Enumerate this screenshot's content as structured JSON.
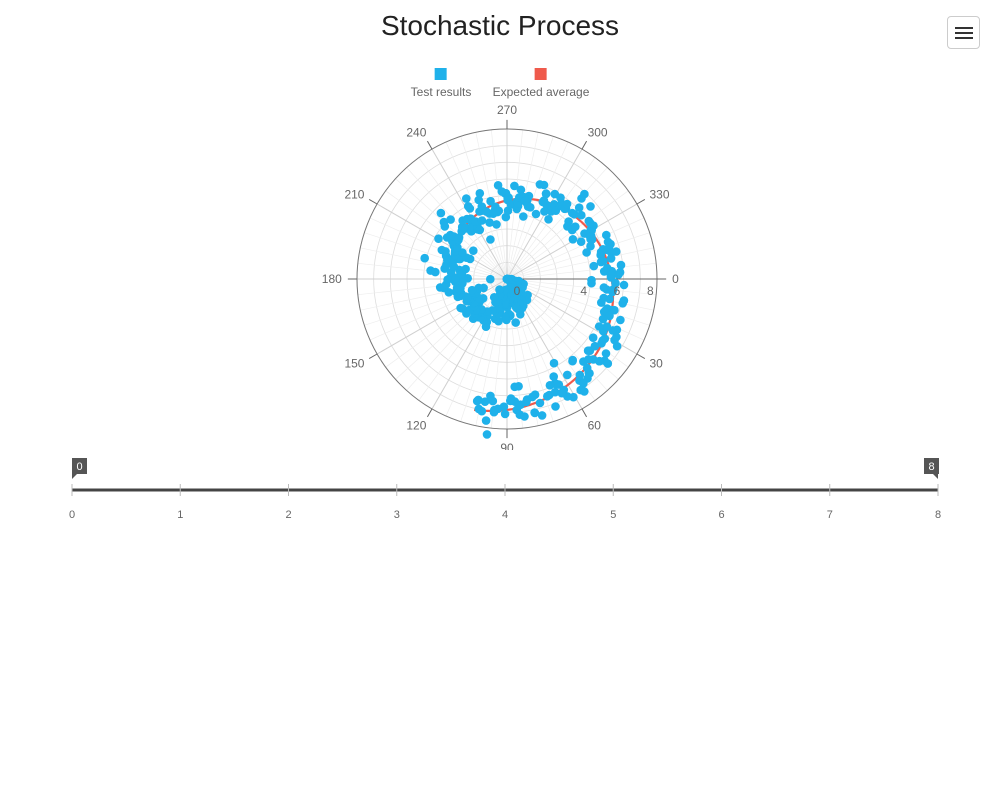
{
  "title": "Stochastic Process",
  "menu": {
    "icon": "hamburger-menu-icon"
  },
  "colors": {
    "series_a": "#1fb1ea",
    "series_b": "#ef5a4c",
    "axis": "#666666",
    "grid": "#dddddd"
  },
  "legend": [
    {
      "label": "Test results",
      "color": "#1fb1ea"
    },
    {
      "label": "Expected average",
      "color": "#ef5a4c"
    }
  ],
  "chart_data": {
    "type": "scatter",
    "coordinate_system": "polar",
    "title": "Stochastic Process",
    "angle_direction": "clockwise",
    "angle_ticks": [
      0,
      30,
      60,
      90,
      120,
      150,
      180,
      210,
      240,
      270,
      300,
      330
    ],
    "radius_ticks": [
      0,
      4,
      6,
      8
    ],
    "radius_range": [
      0,
      9
    ],
    "grid": true,
    "legend_position": "top",
    "series": [
      {
        "name": "Test results",
        "type": "scatter",
        "color": "#1fb1ea",
        "description_points": "approx. 450 noisy points scattered around an Archimedean spiral r = theta (radians), theta from 0 to about 8",
        "spiral_r_per_radian": 1.0,
        "theta_range_radians": [
          0,
          8.1
        ],
        "noise_radius": 0.6
      },
      {
        "name": "Expected average",
        "type": "line",
        "color": "#ef5a4c",
        "curve": "r = theta",
        "theta_range_radians": [
          0,
          8.1
        ]
      }
    ]
  },
  "slider": {
    "min": 0,
    "max": 8,
    "low_value": "0",
    "high_value": "8",
    "ticks": [
      "0",
      "1",
      "2",
      "3",
      "4",
      "5",
      "6",
      "7",
      "8"
    ]
  }
}
